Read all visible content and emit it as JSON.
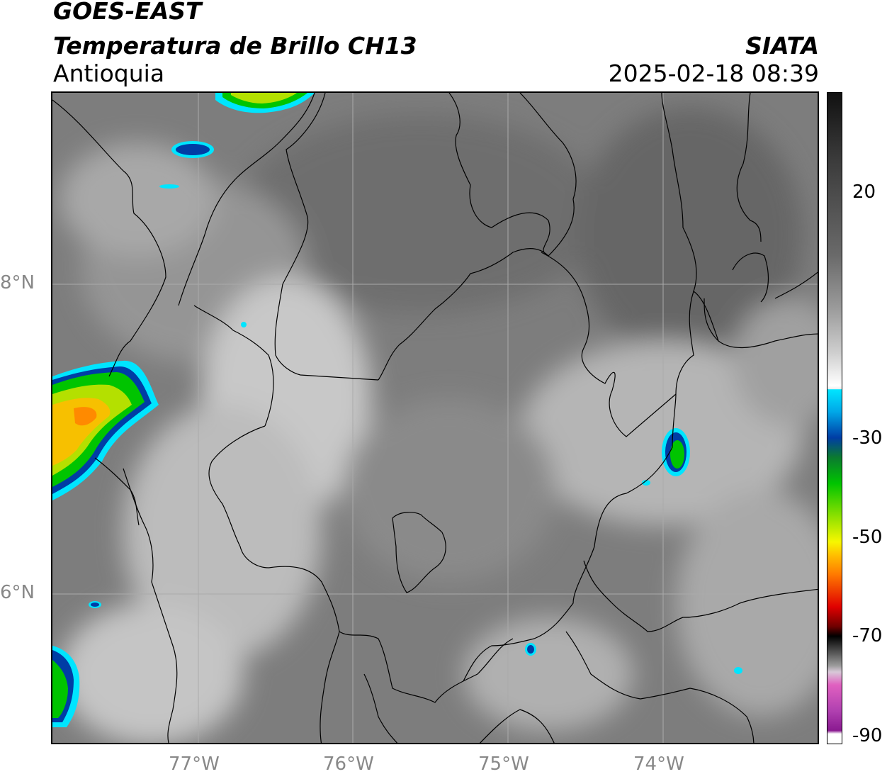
{
  "header": {
    "satellite": "GOES-EAST",
    "product": "Temperatura de Brillo CH13",
    "region": "Antioquia",
    "organization": "SIATA",
    "timestamp": "2025-02-18 08:39"
  },
  "axes": {
    "lat_labels": [
      "8°N",
      "6°N"
    ],
    "lon_labels": [
      "77°W",
      "76°W",
      "75°W",
      "74°W"
    ]
  },
  "colorbar": {
    "ticks": [
      "20",
      "-30",
      "-50",
      "-70",
      "-90"
    ],
    "palette": {
      "top": "#111111",
      "mid": "#9a9a9a",
      "white": "#ffffff",
      "cyan": "#00e5ff",
      "blue": "#003da5",
      "green": "#00c400",
      "yellow": "#f7f700",
      "orange": "#ff7a00",
      "red": "#e00000",
      "black": "#000000",
      "pink": "#e060c0",
      "purple": "#8a1a90"
    }
  },
  "map": {
    "background": "#7b7b7b",
    "border_color": "#000000",
    "grid_color": "#aaaaaa"
  }
}
